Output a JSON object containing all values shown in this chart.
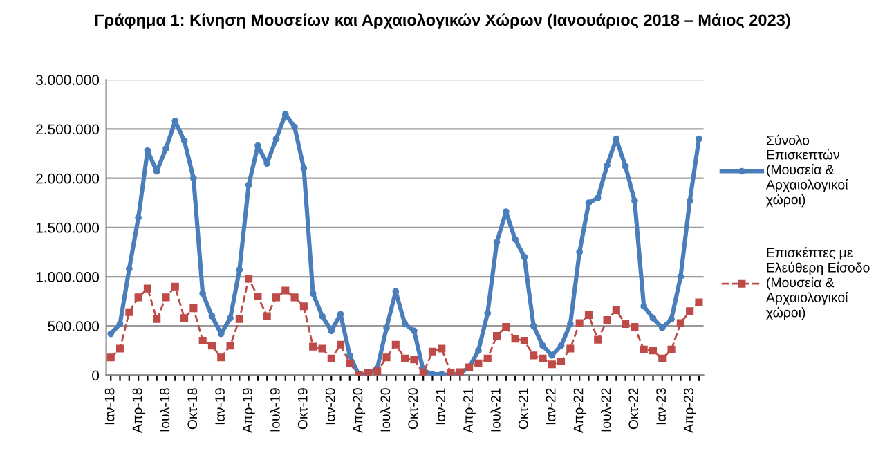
{
  "chart_data": {
    "type": "line",
    "title": "Γράφημα 1: Κίνηση Μουσείων και Αρχαιολογικών Χώρων (Ιανουάριος 2018 – Μάιος 2023)",
    "categories": [
      "Ιαν-18",
      null,
      null,
      "Απρ-18",
      null,
      null,
      "Ιουλ-18",
      null,
      null,
      "Οκτ-18",
      null,
      null,
      "Ιαν-19",
      null,
      null,
      "Απρ-19",
      null,
      null,
      "Ιουλ-19",
      null,
      null,
      "Οκτ-19",
      null,
      null,
      "Ιαν-20",
      null,
      null,
      "Απρ-20",
      null,
      null,
      "Ιουλ-20",
      null,
      null,
      "Οκτ-20",
      null,
      null,
      "Ιαν-21",
      null,
      null,
      "Απρ-21",
      null,
      null,
      "Ιουλ-21",
      null,
      null,
      "Οκτ-21",
      null,
      null,
      "Ιαν-22",
      null,
      null,
      "Απρ-22",
      null,
      null,
      "Ιουλ-22",
      null,
      null,
      "Οκτ-22",
      null,
      null,
      "Ιαν-23",
      null,
      null,
      "Απρ-23",
      null
    ],
    "series": [
      {
        "name": "Σύνολο Επισκεπτών (Μουσεία & Αρχαιολογικοί χώροι)",
        "color": "#4a7ebb",
        "line_style": "solid",
        "marker": "circle",
        "values": [
          420000,
          520000,
          1080000,
          1600000,
          2280000,
          2070000,
          2300000,
          2580000,
          2380000,
          2000000,
          830000,
          600000,
          420000,
          580000,
          1070000,
          1930000,
          2330000,
          2150000,
          2400000,
          2650000,
          2520000,
          2100000,
          830000,
          600000,
          450000,
          620000,
          200000,
          0,
          20000,
          70000,
          480000,
          850000,
          520000,
          450000,
          50000,
          10000,
          10000,
          0,
          20000,
          80000,
          250000,
          630000,
          1350000,
          1660000,
          1380000,
          1200000,
          500000,
          300000,
          200000,
          300000,
          520000,
          1250000,
          1750000,
          1800000,
          2130000,
          2400000,
          2120000,
          1770000,
          700000,
          580000,
          480000,
          570000,
          1000000,
          1770000,
          2400000
        ]
      },
      {
        "name": "Επισκέπτες με Ελεύθερη Είσοδο (Μουσεία & Αρχαιολογικοί χώροι)",
        "color": "#be4b48",
        "line_style": "dashed",
        "marker": "square",
        "values": [
          180000,
          270000,
          640000,
          790000,
          880000,
          570000,
          790000,
          900000,
          580000,
          680000,
          350000,
          300000,
          180000,
          300000,
          570000,
          980000,
          800000,
          600000,
          790000,
          860000,
          790000,
          700000,
          290000,
          270000,
          170000,
          310000,
          120000,
          0,
          20000,
          40000,
          180000,
          310000,
          170000,
          160000,
          20000,
          240000,
          270000,
          20000,
          30000,
          80000,
          120000,
          170000,
          400000,
          490000,
          370000,
          350000,
          200000,
          170000,
          110000,
          140000,
          270000,
          530000,
          610000,
          360000,
          560000,
          660000,
          520000,
          490000,
          260000,
          250000,
          170000,
          260000,
          530000,
          650000,
          740000
        ]
      }
    ],
    "ylim": [
      0,
      3000000
    ],
    "yticks": [
      {
        "value": 0,
        "label": "0"
      },
      {
        "value": 500000,
        "label": "500.000"
      },
      {
        "value": 1000000,
        "label": "1.000.000"
      },
      {
        "value": 1500000,
        "label": "1.500.000"
      },
      {
        "value": 2000000,
        "label": "2.000.000"
      },
      {
        "value": 2500000,
        "label": "2.500.000"
      },
      {
        "value": 3000000,
        "label": "3.000.000"
      }
    ],
    "grid": "y",
    "legend": "right"
  }
}
